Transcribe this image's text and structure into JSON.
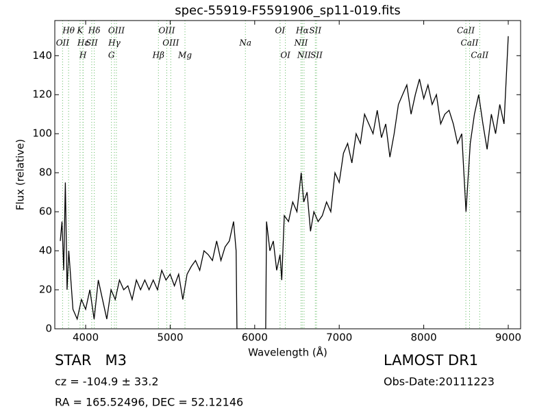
{
  "chart_data": {
    "type": "line",
    "title": "spec-55919-F5591906_sp11-019.fits",
    "x_label": "Wavelength (Å)",
    "y_label": "Flux (relative)",
    "xlim": [
      3635,
      9146
    ],
    "ylim": [
      0,
      158
    ],
    "xticks": [
      4000,
      5000,
      6000,
      7000,
      8000,
      9000
    ],
    "yticks": [
      0,
      20,
      40,
      60,
      80,
      100,
      120,
      140
    ],
    "color": "#000000",
    "line_color": "#5cb85c",
    "x": [
      3700,
      3720,
      3740,
      3760,
      3780,
      3800,
      3850,
      3900,
      3950,
      4000,
      4050,
      4100,
      4150,
      4200,
      4250,
      4300,
      4350,
      4400,
      4450,
      4500,
      4550,
      4600,
      4650,
      4700,
      4750,
      4800,
      4850,
      4900,
      4950,
      5000,
      5050,
      5100,
      5150,
      5200,
      5250,
      5300,
      5350,
      5400,
      5450,
      5500,
      5550,
      5600,
      5650,
      5700,
      5750,
      5780,
      5790,
      6130,
      6140,
      6180,
      6220,
      6260,
      6300,
      6320,
      6350,
      6400,
      6450,
      6500,
      6550,
      6580,
      6620,
      6660,
      6700,
      6750,
      6800,
      6850,
      6900,
      6950,
      7000,
      7050,
      7100,
      7150,
      7200,
      7250,
      7300,
      7350,
      7400,
      7450,
      7500,
      7550,
      7600,
      7650,
      7700,
      7750,
      7800,
      7850,
      7900,
      7950,
      8000,
      8050,
      8100,
      8150,
      8200,
      8250,
      8300,
      8350,
      8400,
      8450,
      8500,
      8550,
      8600,
      8650,
      8700,
      8750,
      8800,
      8850,
      8900,
      8950,
      9000
    ],
    "values": [
      45,
      55,
      30,
      75,
      20,
      40,
      10,
      5,
      15,
      10,
      20,
      5,
      25,
      15,
      5,
      20,
      15,
      25,
      20,
      22,
      15,
      25,
      20,
      25,
      20,
      25,
      20,
      30,
      25,
      28,
      22,
      28,
      15,
      28,
      32,
      35,
      30,
      40,
      38,
      35,
      45,
      35,
      42,
      45,
      55,
      40,
      0,
      0,
      55,
      40,
      45,
      30,
      38,
      25,
      58,
      55,
      65,
      60,
      80,
      65,
      70,
      50,
      60,
      55,
      58,
      65,
      60,
      80,
      75,
      90,
      95,
      85,
      100,
      95,
      110,
      105,
      100,
      112,
      98,
      105,
      88,
      100,
      115,
      120,
      125,
      110,
      120,
      128,
      118,
      125,
      115,
      120,
      105,
      110,
      112,
      105,
      95,
      100,
      60,
      95,
      110,
      120,
      105,
      92,
      110,
      100,
      115,
      105,
      150
    ],
    "lines": [
      {
        "name": "Hθ",
        "wavelength": 3798,
        "row": 1
      },
      {
        "name": "K",
        "wavelength": 3934,
        "row": 1
      },
      {
        "name": "Hδ",
        "wavelength": 4102,
        "row": 1
      },
      {
        "name": "OIII",
        "wavelength": 4364,
        "row": 1
      },
      {
        "name": "OIII",
        "wavelength": 4960,
        "row": 1
      },
      {
        "name": "OI",
        "wavelength": 6300,
        "row": 1
      },
      {
        "name": "Hα",
        "wavelength": 6563,
        "row": 1
      },
      {
        "name": "SII",
        "wavelength": 6717,
        "row": 1
      },
      {
        "name": "CaII",
        "wavelength": 8498,
        "row": 1
      },
      {
        "name": "OII",
        "wavelength": 3727,
        "row": 2
      },
      {
        "name": "Hε",
        "wavelength": 3970,
        "row": 2
      },
      {
        "name": "SII",
        "wavelength": 4072,
        "row": 2
      },
      {
        "name": "Hγ",
        "wavelength": 4340,
        "row": 2
      },
      {
        "name": "OIII",
        "wavelength": 5007,
        "row": 2
      },
      {
        "name": "Na",
        "wavelength": 5890,
        "row": 2
      },
      {
        "name": "NII",
        "wavelength": 6548,
        "row": 2
      },
      {
        "name": "CaII",
        "wavelength": 8542,
        "row": 2
      },
      {
        "name": "H",
        "wavelength": 3968,
        "row": 3
      },
      {
        "name": "G",
        "wavelength": 4305,
        "row": 3
      },
      {
        "name": "Hβ",
        "wavelength": 4861,
        "row": 3
      },
      {
        "name": "Mg",
        "wavelength": 5175,
        "row": 3
      },
      {
        "name": "OI",
        "wavelength": 6363,
        "row": 3
      },
      {
        "name": "NII",
        "wavelength": 6584,
        "row": 3
      },
      {
        "name": "SII",
        "wavelength": 6731,
        "row": 3
      },
      {
        "name": "CaII",
        "wavelength": 8662,
        "row": 3
      }
    ]
  },
  "info": {
    "object_class": "STAR   M3",
    "survey": "LAMOST DR1",
    "redshift": "cz = -104.9 ± 33.2",
    "obs_date": "Obs-Date:20111223",
    "coords": "RA = 165.52496, DEC = 52.12146"
  }
}
